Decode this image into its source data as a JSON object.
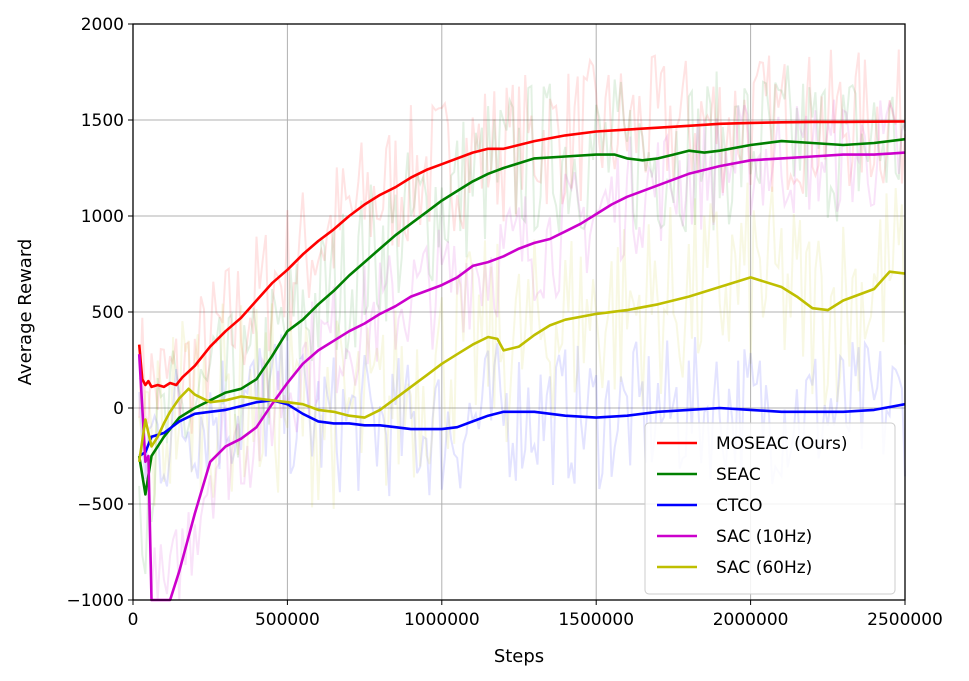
{
  "chart_data": {
    "type": "line",
    "title": "",
    "xlabel": "Steps",
    "ylabel": "Average Reward",
    "xlim": [
      0,
      2500000
    ],
    "ylim": [
      -1000,
      2000
    ],
    "xticks": [
      0,
      500000,
      1000000,
      1500000,
      2000000,
      2500000
    ],
    "xtick_labels": [
      "0",
      "500000",
      "1000000",
      "1500000",
      "2000000",
      "2500000"
    ],
    "yticks": [
      -1000,
      -500,
      0,
      500,
      1000,
      1500,
      2000
    ],
    "ytick_labels": [
      "−1000",
      "−500",
      "0",
      "500",
      "1000",
      "1500",
      "2000"
    ],
    "grid": true,
    "legend_position": "lower-right",
    "series": [
      {
        "name": "MOSEAC (Ours)",
        "color": "#ff0000",
        "x": [
          20000,
          30000,
          40000,
          50000,
          60000,
          80000,
          100000,
          120000,
          140000,
          160000,
          200000,
          250000,
          300000,
          350000,
          400000,
          450000,
          500000,
          550000,
          600000,
          650000,
          700000,
          750000,
          800000,
          850000,
          900000,
          950000,
          1000000,
          1100000,
          1150000,
          1200000,
          1300000,
          1400000,
          1500000,
          1600000,
          1700000,
          1800000,
          1900000,
          2000000,
          2100000,
          2200000,
          2300000,
          2400000,
          2500000
        ],
        "y": [
          330,
          150,
          120,
          140,
          110,
          120,
          110,
          130,
          120,
          160,
          220,
          320,
          400,
          470,
          560,
          650,
          720,
          800,
          870,
          930,
          1000,
          1060,
          1110,
          1150,
          1200,
          1240,
          1270,
          1330,
          1350,
          1350,
          1390,
          1420,
          1440,
          1450,
          1460,
          1470,
          1480,
          1485,
          1488,
          1490,
          1490,
          1491,
          1492
        ]
      },
      {
        "name": "SEAC",
        "color": "#008000",
        "x": [
          20000,
          40000,
          60000,
          80000,
          100000,
          150000,
          200000,
          250000,
          300000,
          350000,
          400000,
          450000,
          500000,
          550000,
          600000,
          650000,
          700000,
          750000,
          800000,
          850000,
          900000,
          950000,
          1000000,
          1050000,
          1100000,
          1150000,
          1200000,
          1300000,
          1400000,
          1500000,
          1560000,
          1600000,
          1650000,
          1700000,
          1750000,
          1800000,
          1850000,
          1900000,
          2000000,
          2100000,
          2200000,
          2300000,
          2400000,
          2500000
        ],
        "y": [
          -250,
          -450,
          -250,
          -200,
          -150,
          -50,
          0,
          40,
          80,
          100,
          150,
          270,
          400,
          460,
          540,
          610,
          690,
          760,
          830,
          900,
          960,
          1020,
          1080,
          1130,
          1180,
          1220,
          1250,
          1300,
          1310,
          1320,
          1320,
          1300,
          1290,
          1300,
          1320,
          1340,
          1330,
          1340,
          1370,
          1390,
          1380,
          1370,
          1380,
          1400
        ]
      },
      {
        "name": "CTCO",
        "color": "#0000ff",
        "x": [
          20000,
          40000,
          60000,
          80000,
          100000,
          150000,
          200000,
          250000,
          300000,
          350000,
          400000,
          450000,
          500000,
          550000,
          600000,
          650000,
          700000,
          750000,
          800000,
          850000,
          900000,
          950000,
          1000000,
          1050000,
          1100000,
          1150000,
          1200000,
          1300000,
          1400000,
          1500000,
          1600000,
          1700000,
          1800000,
          1900000,
          2000000,
          2100000,
          2200000,
          2300000,
          2400000,
          2500000
        ],
        "y": [
          -250,
          -230,
          -150,
          -140,
          -130,
          -70,
          -30,
          -20,
          -10,
          10,
          30,
          40,
          20,
          -30,
          -70,
          -80,
          -80,
          -90,
          -90,
          -100,
          -110,
          -110,
          -110,
          -100,
          -70,
          -40,
          -20,
          -20,
          -40,
          -50,
          -40,
          -20,
          -10,
          0,
          -10,
          -20,
          -20,
          -20,
          -10,
          20
        ]
      },
      {
        "name": "SAC (10Hz)",
        "color": "#cc00cc",
        "x": [
          20000,
          40000,
          50000,
          60000,
          80000,
          100000,
          120000,
          150000,
          200000,
          250000,
          300000,
          350000,
          400000,
          450000,
          500000,
          550000,
          600000,
          650000,
          700000,
          750000,
          800000,
          850000,
          900000,
          950000,
          1000000,
          1050000,
          1100000,
          1150000,
          1200000,
          1250000,
          1300000,
          1350000,
          1400000,
          1450000,
          1500000,
          1550000,
          1600000,
          1700000,
          1800000,
          1900000,
          2000000,
          2100000,
          2200000,
          2300000,
          2400000,
          2500000
        ],
        "y": [
          280,
          -280,
          -250,
          -1000,
          -1000,
          -1000,
          -1000,
          -850,
          -550,
          -280,
          -200,
          -160,
          -100,
          20,
          130,
          230,
          300,
          350,
          400,
          440,
          490,
          530,
          580,
          610,
          640,
          680,
          740,
          760,
          790,
          830,
          860,
          880,
          920,
          960,
          1010,
          1060,
          1100,
          1160,
          1220,
          1260,
          1290,
          1300,
          1310,
          1320,
          1320,
          1330
        ]
      },
      {
        "name": "SAC (60Hz)",
        "color": "#bfbf00",
        "x": [
          20000,
          40000,
          60000,
          80000,
          100000,
          120000,
          150000,
          180000,
          200000,
          250000,
          300000,
          350000,
          400000,
          450000,
          500000,
          550000,
          600000,
          650000,
          700000,
          750000,
          800000,
          850000,
          900000,
          950000,
          1000000,
          1050000,
          1100000,
          1150000,
          1180000,
          1200000,
          1250000,
          1300000,
          1350000,
          1400000,
          1500000,
          1600000,
          1700000,
          1800000,
          1900000,
          2000000,
          2100000,
          2150000,
          2200000,
          2250000,
          2300000,
          2400000,
          2450000,
          2500000
        ],
        "y": [
          -280,
          -60,
          -200,
          -150,
          -80,
          -20,
          50,
          100,
          70,
          30,
          40,
          60,
          50,
          40,
          30,
          20,
          -10,
          -20,
          -40,
          -50,
          -10,
          50,
          110,
          170,
          230,
          280,
          330,
          370,
          360,
          300,
          320,
          380,
          430,
          460,
          490,
          510,
          540,
          580,
          630,
          680,
          630,
          580,
          520,
          510,
          560,
          620,
          710,
          700
        ]
      }
    ]
  }
}
